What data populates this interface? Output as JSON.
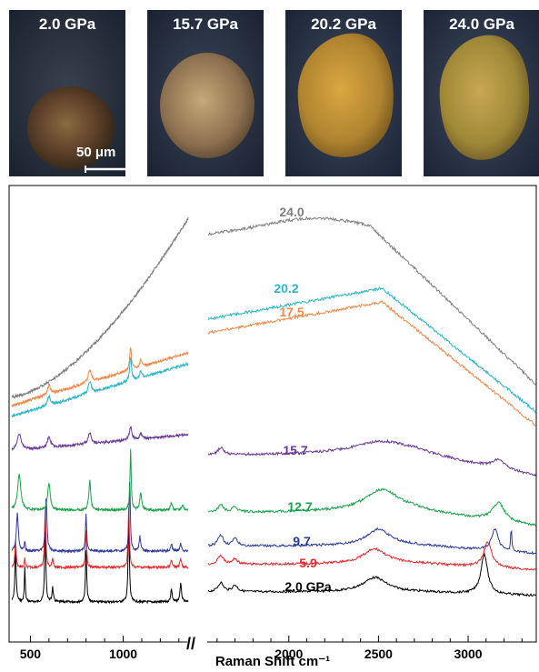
{
  "photos": [
    {
      "label": "2.0 GPa",
      "scale_label": "50 μm"
    },
    {
      "label": "15.7 GPa"
    },
    {
      "label": "20.2 GPa"
    },
    {
      "label": "24.0 GPa"
    }
  ],
  "chart_data": {
    "type": "line",
    "xlabel": "Raman Shift cm⁻¹",
    "x_ticks": [
      500,
      1000,
      2000,
      2500,
      3000
    ],
    "x_tick_labels": [
      "500",
      "1000",
      "2000",
      "2500",
      "3000"
    ],
    "axis_break_symbol": "//",
    "x_ranges": [
      [
        400,
        1350
      ],
      [
        1550,
        3380
      ]
    ],
    "series": [
      {
        "name": "2.0 GPa",
        "color": "#000000"
      },
      {
        "name": "5.9",
        "color": "#e8292b"
      },
      {
        "name": "9.7",
        "color": "#2e3a9a"
      },
      {
        "name": "12.7",
        "color": "#1aa34a"
      },
      {
        "name": "15.7",
        "color": "#6a3b96"
      },
      {
        "name": "17.5",
        "color": "#f08a4b"
      },
      {
        "name": "20.2",
        "color": "#29b6c8"
      },
      {
        "name": "24.0",
        "color": "#7f7f7f"
      }
    ]
  }
}
